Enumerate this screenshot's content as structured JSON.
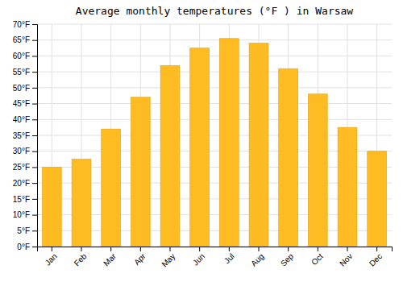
{
  "chart_data": {
    "type": "bar",
    "title": "Average monthly temperatures (°F ) in Warsaw",
    "categories": [
      "Jan",
      "Feb",
      "Mar",
      "Apr",
      "May",
      "Jun",
      "Jul",
      "Aug",
      "Sep",
      "Oct",
      "Nov",
      "Dec"
    ],
    "values": [
      25,
      27.5,
      37,
      47,
      57,
      62.5,
      65.5,
      64,
      56,
      48,
      37.5,
      30
    ],
    "color": "#FFBB22",
    "ylim": [
      0,
      70
    ],
    "yticks": [
      {
        "value": 0,
        "label": "0°F"
      },
      {
        "value": 5,
        "label": "5°F"
      },
      {
        "value": 10,
        "label": "10°F"
      },
      {
        "value": 15,
        "label": "15°F"
      },
      {
        "value": 20,
        "label": "20°F"
      },
      {
        "value": 25,
        "label": "25°F"
      },
      {
        "value": 30,
        "label": "30°F"
      },
      {
        "value": 35,
        "label": "35°F"
      },
      {
        "value": 40,
        "label": "40°F"
      },
      {
        "value": 45,
        "label": "45°F"
      },
      {
        "value": 50,
        "label": "50°F"
      },
      {
        "value": 55,
        "label": "55°F"
      },
      {
        "value": 60,
        "label": "60°F"
      },
      {
        "value": 65,
        "label": "65°F"
      },
      {
        "value": 70,
        "label": "70°F"
      }
    ],
    "grid": true
  }
}
